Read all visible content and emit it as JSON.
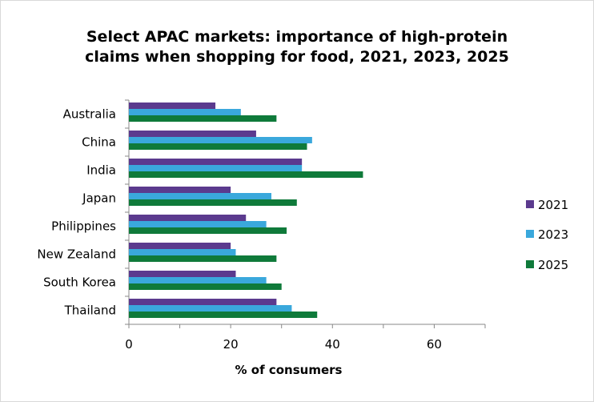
{
  "chart_data": {
    "type": "bar",
    "orientation": "horizontal",
    "title_line1": "Select APAC markets: importance of high-protein",
    "title_line2": "claims when shopping for food, 2021, 2023, 2025",
    "xlabel": "% of consumers",
    "ylabel": "",
    "xlim": [
      0,
      70
    ],
    "xticks": [
      0,
      20,
      40,
      60
    ],
    "grid": false,
    "legend_position": "right",
    "categories": [
      "Australia",
      "China",
      "India",
      "Japan",
      "Philippines",
      "New Zealand",
      "South Korea",
      "Thailand"
    ],
    "series": [
      {
        "name": "2021",
        "color": "#5b3a8e",
        "values": [
          17,
          25,
          34,
          20,
          23,
          20,
          21,
          29
        ]
      },
      {
        "name": "2023",
        "color": "#3aa8dc",
        "values": [
          22,
          36,
          34,
          28,
          27,
          21,
          27,
          32
        ]
      },
      {
        "name": "2025",
        "color": "#0f7a3a",
        "values": [
          29,
          35,
          46,
          33,
          31,
          29,
          30,
          37
        ]
      }
    ]
  }
}
